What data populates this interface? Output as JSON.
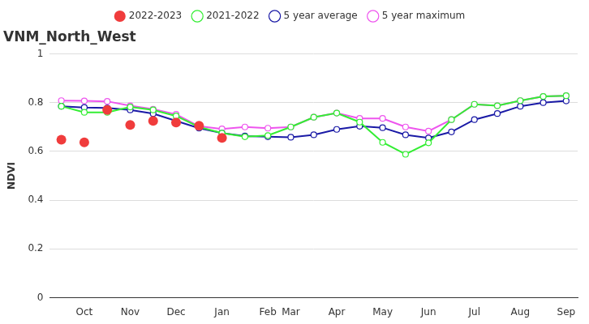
{
  "chart_data": {
    "type": "line",
    "title": "VNM_North_West",
    "y_label": "NDVI",
    "categories": [
      null,
      "Oct",
      null,
      "Nov",
      null,
      "Dec",
      null,
      "Jan",
      null,
      "Feb",
      "Mar",
      null,
      "Apr",
      null,
      "May",
      null,
      "Jun",
      null,
      "Jul",
      null,
      "Aug",
      null,
      "Sep"
    ],
    "series": [
      {
        "name": "2022-2023",
        "color": "#f03c3c",
        "marker": "circle",
        "line_style": "none",
        "values": [
          0.648,
          0.637,
          0.77,
          0.708,
          0.725,
          0.718,
          0.705,
          0.655,
          null,
          null,
          null,
          null,
          null,
          null,
          null,
          null,
          null,
          null,
          null,
          null,
          null,
          null,
          null
        ]
      },
      {
        "name": "2021-2022",
        "color": "#33ee33",
        "marker": "circle",
        "line_style": "solid",
        "values": [
          0.785,
          0.76,
          0.76,
          0.782,
          0.77,
          0.745,
          0.7,
          0.675,
          0.66,
          0.665,
          0.7,
          0.74,
          0.757,
          0.72,
          0.637,
          0.588,
          0.635,
          0.73,
          0.793,
          0.787,
          0.808,
          0.825,
          0.828
        ]
      },
      {
        "name": "5 year average",
        "color": "#1a1aa6",
        "marker": "circle",
        "line_style": "solid",
        "values": [
          0.785,
          0.78,
          0.778,
          0.77,
          0.755,
          0.725,
          0.695,
          0.675,
          0.663,
          0.66,
          0.658,
          0.668,
          0.69,
          0.703,
          0.697,
          0.668,
          0.655,
          0.68,
          0.73,
          0.755,
          0.785,
          0.8,
          0.807
        ]
      },
      {
        "name": "5 year maximum",
        "color": "#ee55ee",
        "marker": "circle",
        "line_style": "solid",
        "values": [
          0.808,
          0.807,
          0.805,
          0.787,
          0.773,
          0.752,
          0.703,
          0.692,
          0.7,
          0.695,
          0.7,
          0.74,
          0.757,
          0.735,
          0.735,
          0.7,
          0.683,
          0.73,
          0.793,
          0.787,
          0.808,
          0.825,
          0.828
        ]
      }
    ],
    "ylim": [
      0,
      1
    ],
    "yticks": [
      0,
      0.2,
      0.4,
      0.6,
      0.8,
      1
    ],
    "grid": true,
    "legend": "top"
  }
}
